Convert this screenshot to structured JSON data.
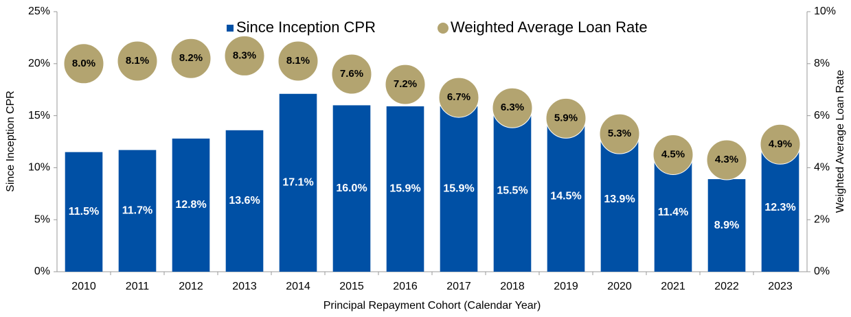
{
  "chart_data": {
    "type": "bar",
    "xlabel": "Principal Repayment Cohort (Calendar Year)",
    "ylabel": "Since Inception CPR",
    "y2label": "Weighted Average Loan Rate",
    "categories": [
      "2010",
      "2011",
      "2012",
      "2013",
      "2014",
      "2015",
      "2016",
      "2017",
      "2018",
      "2019",
      "2020",
      "2021",
      "2022",
      "2023"
    ],
    "series": [
      {
        "name": "Since Inception CPR",
        "type": "bar",
        "color": "#0050a5",
        "values": [
          11.5,
          11.7,
          12.8,
          13.6,
          17.1,
          16.0,
          15.9,
          15.9,
          15.5,
          14.5,
          13.9,
          11.4,
          8.9,
          12.3
        ],
        "value_labels": [
          "11.5%",
          "11.7%",
          "12.8%",
          "13.6%",
          "17.1%",
          "16.0%",
          "15.9%",
          "15.9%",
          "15.5%",
          "14.5%",
          "13.9%",
          "11.4%",
          "8.9%",
          "12.3%"
        ]
      },
      {
        "name": "Weighted Average Loan Rate",
        "type": "scatter",
        "axis": "y2",
        "color": "#b3a470",
        "values": [
          8.0,
          8.1,
          8.2,
          8.3,
          8.1,
          7.6,
          7.2,
          6.7,
          6.3,
          5.9,
          5.3,
          4.5,
          4.3,
          4.9
        ],
        "value_labels": [
          "8.0%",
          "8.1%",
          "8.2%",
          "8.3%",
          "8.1%",
          "7.6%",
          "7.2%",
          "6.7%",
          "6.3%",
          "5.9%",
          "5.3%",
          "4.5%",
          "4.3%",
          "4.9%"
        ]
      }
    ],
    "ylim": [
      0,
      25
    ],
    "yticks": [
      {
        "value": 0,
        "label": "0%"
      },
      {
        "value": 5,
        "label": "5%"
      },
      {
        "value": 10,
        "label": "10%"
      },
      {
        "value": 15,
        "label": "15%"
      },
      {
        "value": 20,
        "label": "20%"
      },
      {
        "value": 25,
        "label": "25%"
      }
    ],
    "y2lim": [
      0,
      10
    ],
    "y2ticks": [
      {
        "value": 0,
        "label": "0%"
      },
      {
        "value": 2,
        "label": "2%"
      },
      {
        "value": 4,
        "label": "4%"
      },
      {
        "value": 6,
        "label": "6%"
      },
      {
        "value": 8,
        "label": "8%"
      },
      {
        "value": 10,
        "label": "10%"
      }
    ],
    "grid": false,
    "legend": "top"
  }
}
